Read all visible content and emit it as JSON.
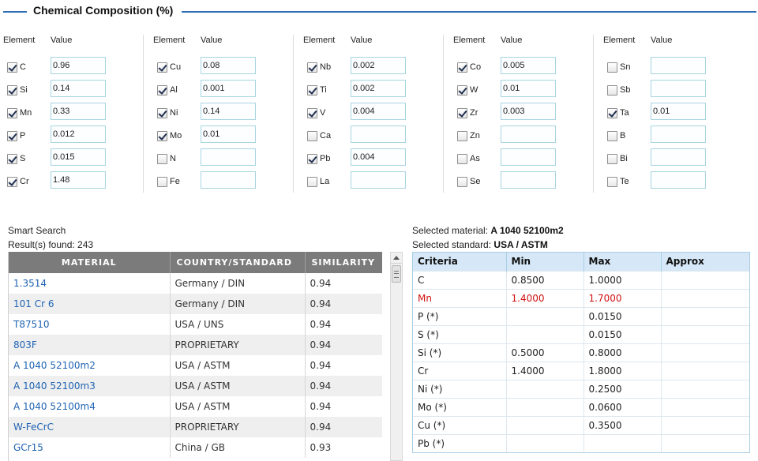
{
  "composition": {
    "title": "Chemical Composition (%)",
    "header_element": "Element",
    "header_value": "Value",
    "columns": [
      [
        {
          "el": "C",
          "checked": true,
          "value": "0.96"
        },
        {
          "el": "Si",
          "checked": true,
          "value": "0.14"
        },
        {
          "el": "Mn",
          "checked": true,
          "value": "0.33"
        },
        {
          "el": "P",
          "checked": true,
          "value": "0.012"
        },
        {
          "el": "S",
          "checked": true,
          "value": "0.015"
        },
        {
          "el": "Cr",
          "checked": true,
          "value": "1.48"
        }
      ],
      [
        {
          "el": "Cu",
          "checked": true,
          "value": "0.08"
        },
        {
          "el": "Al",
          "checked": true,
          "value": "0.001"
        },
        {
          "el": "Ni",
          "checked": true,
          "value": "0.14"
        },
        {
          "el": "Mo",
          "checked": true,
          "value": "0.01"
        },
        {
          "el": "N",
          "checked": false,
          "value": ""
        },
        {
          "el": "Fe",
          "checked": false,
          "value": ""
        }
      ],
      [
        {
          "el": "Nb",
          "checked": true,
          "value": "0.002"
        },
        {
          "el": "Ti",
          "checked": true,
          "value": "0.002"
        },
        {
          "el": "V",
          "checked": true,
          "value": "0.004"
        },
        {
          "el": "Ca",
          "checked": false,
          "value": ""
        },
        {
          "el": "Pb",
          "checked": true,
          "value": "0.004"
        },
        {
          "el": "La",
          "checked": false,
          "value": ""
        }
      ],
      [
        {
          "el": "Co",
          "checked": true,
          "value": "0.005"
        },
        {
          "el": "W",
          "checked": true,
          "value": "0.01"
        },
        {
          "el": "Zr",
          "checked": true,
          "value": "0.003"
        },
        {
          "el": "Zn",
          "checked": false,
          "value": ""
        },
        {
          "el": "As",
          "checked": false,
          "value": ""
        },
        {
          "el": "Se",
          "checked": false,
          "value": ""
        }
      ],
      [
        {
          "el": "Sn",
          "checked": false,
          "value": ""
        },
        {
          "el": "Sb",
          "checked": false,
          "value": ""
        },
        {
          "el": "Ta",
          "checked": true,
          "value": "0.01"
        },
        {
          "el": "B",
          "checked": false,
          "value": ""
        },
        {
          "el": "Bi",
          "checked": false,
          "value": ""
        },
        {
          "el": "Te",
          "checked": false,
          "value": ""
        }
      ]
    ]
  },
  "smart_search": {
    "title": "Smart Search",
    "results_label": "Result(s) found:",
    "results_count": "243",
    "columns": [
      "MATERIAL",
      "COUNTRY/STANDARD",
      "SIMILARITY"
    ],
    "rows": [
      {
        "material": "1.3514",
        "standard": "Germany / DIN",
        "similarity": "0.94"
      },
      {
        "material": "101 Cr 6",
        "standard": "Germany / DIN",
        "similarity": "0.94"
      },
      {
        "material": "T87510",
        "standard": "USA / UNS",
        "similarity": "0.94"
      },
      {
        "material": "803F",
        "standard": "PROPRIETARY",
        "similarity": "0.94"
      },
      {
        "material": "A 1040 52100m2",
        "standard": "USA / ASTM",
        "similarity": "0.94"
      },
      {
        "material": "A 1040 52100m3",
        "standard": "USA / ASTM",
        "similarity": "0.94"
      },
      {
        "material": "A 1040 52100m4",
        "standard": "USA / ASTM",
        "similarity": "0.94"
      },
      {
        "material": "W-FeCrC",
        "standard": "PROPRIETARY",
        "similarity": "0.94"
      },
      {
        "material": "GCr15",
        "standard": "China / GB",
        "similarity": "0.93"
      }
    ]
  },
  "selected": {
    "material_label": "Selected material:",
    "material": "A 1040 52100m2",
    "standard_label": "Selected standard:",
    "standard": "USA / ASTM",
    "columns": [
      "Criteria",
      "Min",
      "Max",
      "Approx"
    ],
    "rows": [
      {
        "criteria": "C",
        "min": "0.8500",
        "max": "1.0000",
        "approx": "",
        "highlight": false
      },
      {
        "criteria": "Mn",
        "min": "1.4000",
        "max": "1.7000",
        "approx": "",
        "highlight": true
      },
      {
        "criteria": "P (*)",
        "min": "",
        "max": "0.0150",
        "approx": "",
        "highlight": false
      },
      {
        "criteria": "S (*)",
        "min": "",
        "max": "0.0150",
        "approx": "",
        "highlight": false
      },
      {
        "criteria": "Si (*)",
        "min": "0.5000",
        "max": "0.8000",
        "approx": "",
        "highlight": false
      },
      {
        "criteria": "Cr",
        "min": "1.4000",
        "max": "1.8000",
        "approx": "",
        "highlight": false
      },
      {
        "criteria": "Ni (*)",
        "min": "",
        "max": "0.2500",
        "approx": "",
        "highlight": false
      },
      {
        "criteria": "Mo (*)",
        "min": "",
        "max": "0.0600",
        "approx": "",
        "highlight": false
      },
      {
        "criteria": "Cu (*)",
        "min": "",
        "max": "0.3500",
        "approx": "",
        "highlight": false
      },
      {
        "criteria": "Pb (*)",
        "min": "",
        "max": "",
        "approx": "",
        "highlight": false
      }
    ]
  },
  "colors": {
    "accent": "#2f6eb5",
    "link": "#1f63b3",
    "table_header": "#7b7b7b",
    "criteria_header": "#d6e8f7",
    "highlight": "#d01010"
  }
}
